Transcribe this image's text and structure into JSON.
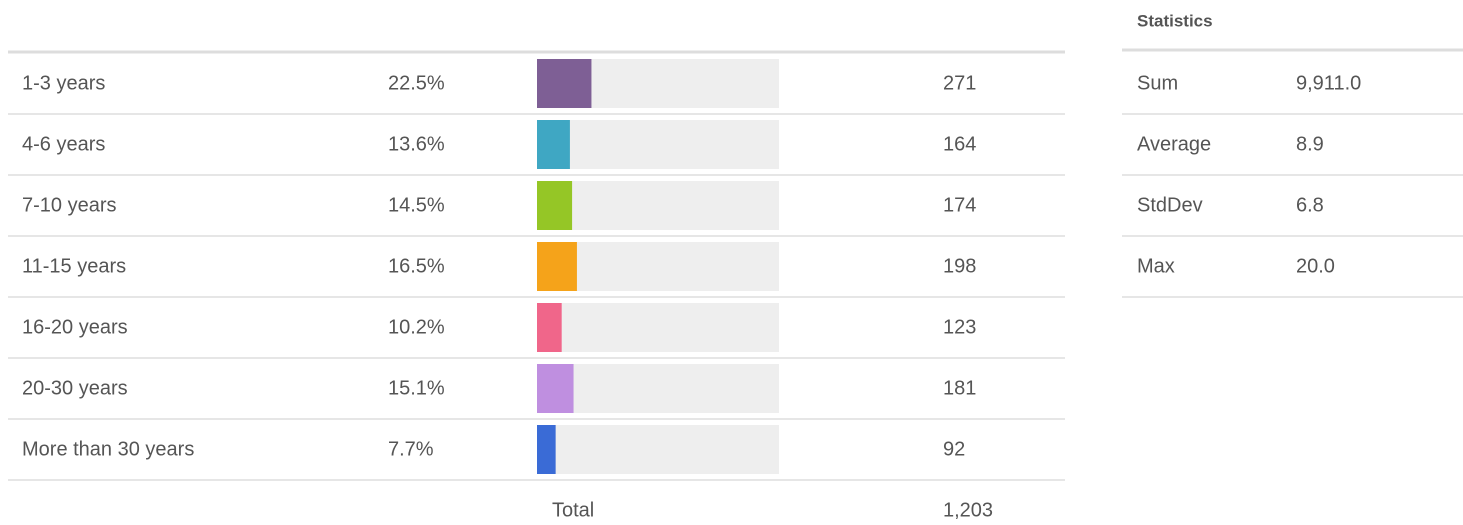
{
  "table": {
    "xlim": [
      0,
      100
    ],
    "rows": [
      {
        "label": "1-3 years",
        "percent": 22.5,
        "percent_label": "22.5%",
        "count": "271",
        "color": "#7e5f95"
      },
      {
        "label": "4-6 years",
        "percent": 13.6,
        "percent_label": "13.6%",
        "count": "164",
        "color": "#3fa7c3"
      },
      {
        "label": "7-10 years",
        "percent": 14.5,
        "percent_label": "14.5%",
        "count": "174",
        "color": "#95c626"
      },
      {
        "label": "11-15 years",
        "percent": 16.5,
        "percent_label": "16.5%",
        "count": "198",
        "color": "#f5a31a"
      },
      {
        "label": "16-20 years",
        "percent": 10.2,
        "percent_label": "10.2%",
        "count": "123",
        "color": "#f0668a"
      },
      {
        "label": "20-30 years",
        "percent": 15.1,
        "percent_label": "15.1%",
        "count": "181",
        "color": "#bf8fe0"
      },
      {
        "label": "More than 30 years",
        "percent": 7.7,
        "percent_label": "7.7%",
        "count": "92",
        "color": "#3a6bd6"
      }
    ],
    "total_label": "Total",
    "total": "1,203"
  },
  "statistics": {
    "title": "Statistics",
    "rows": [
      {
        "label": "Sum",
        "value": "9,911.0"
      },
      {
        "label": "Average",
        "value": "8.9"
      },
      {
        "label": "StdDev",
        "value": "6.8"
      },
      {
        "label": "Max",
        "value": "20.0"
      }
    ]
  }
}
